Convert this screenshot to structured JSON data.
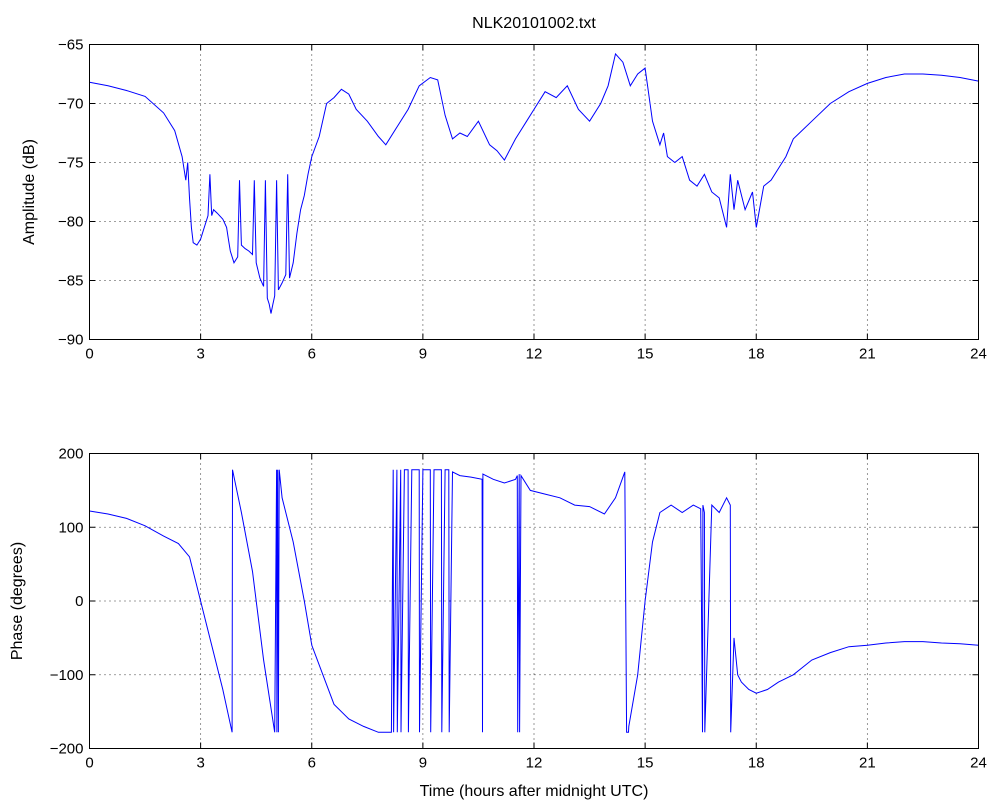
{
  "chart_data": [
    {
      "type": "line",
      "title": "NLK20101002.txt",
      "xlabel": "",
      "ylabel": "Amplitude (dB)",
      "xlim": [
        0,
        24
      ],
      "ylim": [
        -90,
        -65
      ],
      "xticks": [
        "0",
        "3",
        "6",
        "9",
        "12",
        "15",
        "18",
        "21",
        "24"
      ],
      "yticks": [
        "-65",
        "-70",
        "-75",
        "-80",
        "-85",
        "-90"
      ],
      "grid": true,
      "colors": {
        "series": "#0000ff"
      },
      "series": [
        {
          "x": [
            0,
            0.5,
            1.0,
            1.5,
            2.0,
            2.3,
            2.5,
            2.6,
            2.65,
            2.7,
            2.75,
            2.8,
            2.9,
            3.0,
            3.1,
            3.2,
            3.25,
            3.3,
            3.35,
            3.45,
            3.6,
            3.7,
            3.75,
            3.8,
            3.9,
            4.0,
            4.05,
            4.1,
            4.2,
            4.3,
            4.4,
            4.45,
            4.5,
            4.6,
            4.7,
            4.75,
            4.8,
            4.85,
            4.9,
            4.95,
            5.0,
            5.05,
            5.1,
            5.2,
            5.3,
            5.35,
            5.4,
            5.5,
            5.6,
            5.7,
            5.8,
            5.9,
            6.0,
            6.2,
            6.4,
            6.6,
            6.8,
            7.0,
            7.2,
            7.5,
            7.8,
            8.0,
            8.3,
            8.6,
            8.9,
            9.2,
            9.4,
            9.6,
            9.8,
            10.0,
            10.2,
            10.5,
            10.8,
            11.0,
            11.2,
            11.5,
            11.8,
            12.0,
            12.3,
            12.6,
            12.9,
            13.2,
            13.5,
            13.8,
            14.0,
            14.2,
            14.4,
            14.6,
            14.8,
            15.0,
            15.2,
            15.4,
            15.5,
            15.6,
            15.8,
            16.0,
            16.2,
            16.4,
            16.6,
            16.8,
            17.0,
            17.2,
            17.3,
            17.4,
            17.5,
            17.7,
            17.9,
            18.0,
            18.2,
            18.4,
            18.6,
            18.8,
            19.0,
            19.5,
            20.0,
            20.5,
            21.0,
            21.5,
            22.0,
            22.5,
            23.0,
            23.5,
            24.0
          ],
          "values": [
            -68.2,
            -68.5,
            -68.9,
            -69.4,
            -70.8,
            -72.3,
            -74.5,
            -76.5,
            -75.0,
            -78.0,
            -80.5,
            -81.8,
            -82.0,
            -81.5,
            -80.5,
            -79.5,
            -76.0,
            -79.5,
            -79.0,
            -79.3,
            -79.8,
            -80.5,
            -81.5,
            -82.5,
            -83.5,
            -83.0,
            -76.5,
            -82.0,
            -82.3,
            -82.5,
            -82.8,
            -76.5,
            -83.5,
            -84.8,
            -85.5,
            -76.5,
            -86.5,
            -87.0,
            -87.8,
            -87.0,
            -86.3,
            -76.5,
            -85.8,
            -85.2,
            -84.5,
            -76.0,
            -84.8,
            -83.5,
            -81.0,
            -79.0,
            -77.8,
            -76.0,
            -74.5,
            -72.8,
            -70.0,
            -69.5,
            -68.8,
            -69.2,
            -70.5,
            -71.5,
            -72.8,
            -73.5,
            -72.0,
            -70.5,
            -68.5,
            -67.8,
            -68.0,
            -71.0,
            -73.0,
            -72.5,
            -72.8,
            -71.5,
            -73.5,
            -74.0,
            -74.8,
            -73.0,
            -71.5,
            -70.5,
            -69.0,
            -69.5,
            -68.5,
            -70.5,
            -71.5,
            -70.0,
            -68.5,
            -65.8,
            -66.5,
            -68.5,
            -67.5,
            -67.0,
            -71.5,
            -73.5,
            -72.5,
            -74.5,
            -75.0,
            -74.5,
            -76.5,
            -77.0,
            -76.0,
            -77.5,
            -78.0,
            -80.5,
            -76.0,
            -79.0,
            -76.5,
            -79.0,
            -77.5,
            -80.5,
            -77.0,
            -76.5,
            -75.5,
            -74.5,
            -73.0,
            -71.5,
            -70.0,
            -69.0,
            -68.3,
            -67.8,
            -67.5,
            -67.5,
            -67.6,
            -67.8,
            -68.1
          ]
        }
      ]
    },
    {
      "type": "line",
      "title": "",
      "xlabel": "Time (hours after midnight UTC)",
      "ylabel": "Phase (degrees)",
      "xlim": [
        0,
        24
      ],
      "ylim": [
        -200,
        200
      ],
      "xticks": [
        "0",
        "3",
        "6",
        "9",
        "12",
        "15",
        "18",
        "21",
        "24"
      ],
      "yticks": [
        "200",
        "100",
        "0",
        "-100",
        "-200"
      ],
      "grid": true,
      "colors": {
        "series": "#0000ff"
      },
      "series": [
        {
          "x": [
            0,
            0.5,
            1.0,
            1.5,
            2.0,
            2.4,
            2.7,
            3.0,
            3.3,
            3.6,
            3.85,
            3.86,
            4.1,
            4.4,
            4.7,
            5.0,
            5.05,
            5.06,
            5.08,
            5.1,
            5.12,
            5.2,
            5.5,
            5.8,
            6.0,
            6.3,
            6.6,
            7.0,
            7.4,
            7.8,
            8.0,
            8.15,
            8.2,
            8.21,
            8.3,
            8.31,
            8.4,
            8.41,
            8.5,
            8.6,
            8.61,
            8.7,
            8.8,
            8.9,
            8.91,
            9.0,
            9.1,
            9.2,
            9.21,
            9.3,
            9.4,
            9.5,
            9.51,
            9.6,
            9.7,
            9.71,
            9.8,
            10.0,
            10.3,
            10.6,
            10.61,
            10.62,
            10.9,
            11.2,
            11.5,
            11.55,
            11.56,
            11.6,
            11.61,
            11.65,
            11.9,
            12.3,
            12.7,
            13.1,
            13.5,
            13.9,
            14.2,
            14.45,
            14.5,
            14.55,
            14.56,
            14.8,
            15.0,
            15.2,
            15.4,
            15.7,
            16.0,
            16.3,
            16.5,
            16.55,
            16.56,
            16.6,
            16.61,
            16.8,
            17.0,
            17.2,
            17.3,
            17.31,
            17.4,
            17.5,
            17.6,
            17.8,
            18.0,
            18.3,
            18.6,
            19.0,
            19.5,
            20.0,
            20.5,
            21.0,
            21.5,
            22.0,
            22.5,
            23.0,
            23.5,
            24.0
          ],
          "values": [
            122,
            118,
            112,
            102,
            88,
            78,
            60,
            0,
            -60,
            -120,
            -178,
            178,
            120,
            40,
            -80,
            -178,
            178,
            -178,
            178,
            -178,
            178,
            140,
            80,
            0,
            -60,
            -100,
            -140,
            -160,
            -170,
            -178,
            -178,
            -178,
            178,
            -178,
            178,
            -178,
            178,
            -178,
            178,
            178,
            -178,
            178,
            178,
            178,
            -178,
            178,
            178,
            178,
            -178,
            178,
            178,
            178,
            -178,
            178,
            178,
            -178,
            175,
            170,
            168,
            165,
            -178,
            172,
            165,
            160,
            165,
            170,
            -178,
            172,
            -178,
            170,
            150,
            145,
            140,
            130,
            128,
            118,
            140,
            175,
            -178,
            -178,
            -170,
            -100,
            0,
            80,
            120,
            130,
            120,
            130,
            125,
            -178,
            130,
            120,
            -178,
            130,
            120,
            140,
            130,
            -178,
            -50,
            -100,
            -110,
            -120,
            -125,
            -120,
            -110,
            -100,
            -80,
            -70,
            -62,
            -60,
            -57,
            -55,
            -55,
            -57,
            -58,
            -60
          ]
        }
      ]
    }
  ]
}
